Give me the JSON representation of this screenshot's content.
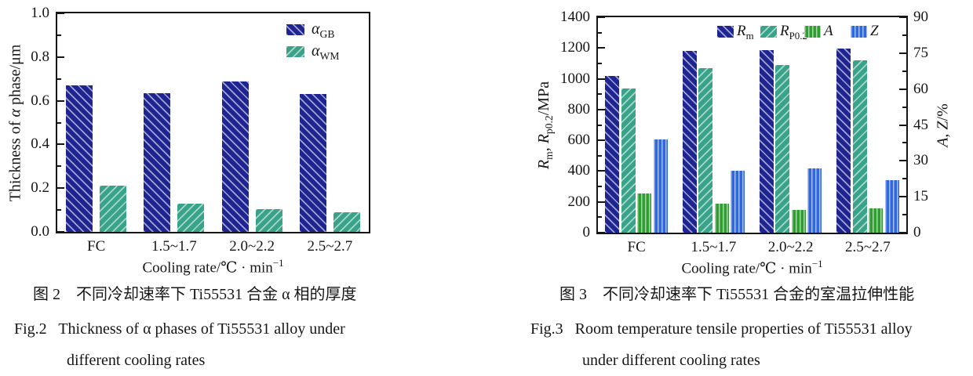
{
  "page": {
    "background": "#ffffff"
  },
  "figure2": {
    "caption_zh": "图 2　不同冷却速率下 Ti55531 合金 α 相的厚度",
    "caption_en_1": "Fig.2   Thickness of α phases of Ti55531 alloy under",
    "caption_en_2": "different cooling rates"
  },
  "figure3": {
    "caption_zh": "图 3　不同冷却速率下 Ti55531 合金的室温拉伸性能",
    "caption_en_1": "Fig.3   Room temperature tensile properties of Ti55531 alloy",
    "caption_en_2": "under different cooling rates"
  },
  "chart_data": [
    {
      "type": "bar",
      "title": "",
      "categories": [
        "FC",
        "1.5~1.7",
        "2.0~2.2",
        "2.5~2.7"
      ],
      "series": [
        {
          "name": "alpha-GB",
          "legend": [
            {
              "t": "α",
              "i": true
            },
            {
              "t": "GB",
              "sub": true
            }
          ],
          "color": "#1f2590",
          "hatch": "\\",
          "axis": "left",
          "values": [
            0.67,
            0.635,
            0.69,
            0.63
          ]
        },
        {
          "name": "alpha-WM",
          "legend": [
            {
              "t": "α",
              "i": true
            },
            {
              "t": "WM",
              "sub": true
            }
          ],
          "color": "#38a389",
          "hatch": "/",
          "axis": "left",
          "values": [
            0.21,
            0.13,
            0.105,
            0.09
          ]
        }
      ],
      "xlabel_parts": [
        {
          "t": "Cooling rate/℃ · min"
        },
        {
          "t": "−1",
          "sup": true
        }
      ],
      "ylabel_left_parts": [
        {
          "t": "Thickness of "
        },
        {
          "t": "α",
          "i": true
        },
        {
          "t": " phase/μm"
        }
      ],
      "ylim_left": [
        0,
        1.0
      ],
      "yticks_left": [
        "0.0",
        "0.2",
        "0.4",
        "0.6",
        "0.8",
        "1.0"
      ],
      "legend_position": "top-right-inside",
      "grid": false
    },
    {
      "type": "bar",
      "title": "",
      "categories": [
        "FC",
        "1.5~1.7",
        "2.0~2.2",
        "2.5~2.7"
      ],
      "series": [
        {
          "name": "Rm",
          "legend": [
            {
              "t": "R",
              "i": true
            },
            {
              "t": "m",
              "sub": true
            }
          ],
          "color": "#1f2590",
          "hatch": "\\",
          "axis": "left",
          "values": [
            1020,
            1180,
            1185,
            1195
          ]
        },
        {
          "name": "Rp0.2",
          "legend": [
            {
              "t": "R",
              "i": true
            },
            {
              "t": "P0.2",
              "sub": true
            }
          ],
          "color": "#38a389",
          "hatch": "/",
          "axis": "left",
          "values": [
            935,
            1070,
            1090,
            1120
          ]
        },
        {
          "name": "A",
          "legend": [
            {
              "t": "A",
              "i": true
            }
          ],
          "color": "#2e9e31",
          "hatch": "|",
          "axis": "right",
          "values": [
            16.5,
            12,
            9.5,
            10
          ]
        },
        {
          "name": "Z",
          "legend": [
            {
              "t": "Z",
              "i": true
            }
          ],
          "color": "#2f67e0",
          "hatch": "|",
          "axis": "right",
          "values": [
            39,
            26,
            27,
            22
          ]
        }
      ],
      "xlabel_parts": [
        {
          "t": "Cooling rate/℃ · min"
        },
        {
          "t": "−1",
          "sup": true
        }
      ],
      "ylabel_left_parts": [
        {
          "t": "R",
          "i": true
        },
        {
          "t": "m",
          "sub": true
        },
        {
          "t": ", "
        },
        {
          "t": "R",
          "i": true
        },
        {
          "t": "p0.2",
          "sub": true
        },
        {
          "t": "/MPa"
        }
      ],
      "ylabel_right_parts": [
        {
          "t": "A",
          "i": true
        },
        {
          "t": ", "
        },
        {
          "t": "Z",
          "i": true
        },
        {
          "t": "/%"
        }
      ],
      "ylim_left": [
        0,
        1400
      ],
      "yticks_left": [
        "0",
        "200",
        "400",
        "600",
        "800",
        "1000",
        "1200",
        "1400"
      ],
      "ylim_right": [
        0,
        90
      ],
      "yticks_right": [
        "0",
        "15",
        "30",
        "45",
        "60",
        "75",
        "90"
      ],
      "legend_position": "top-inside-row",
      "grid": false
    }
  ]
}
